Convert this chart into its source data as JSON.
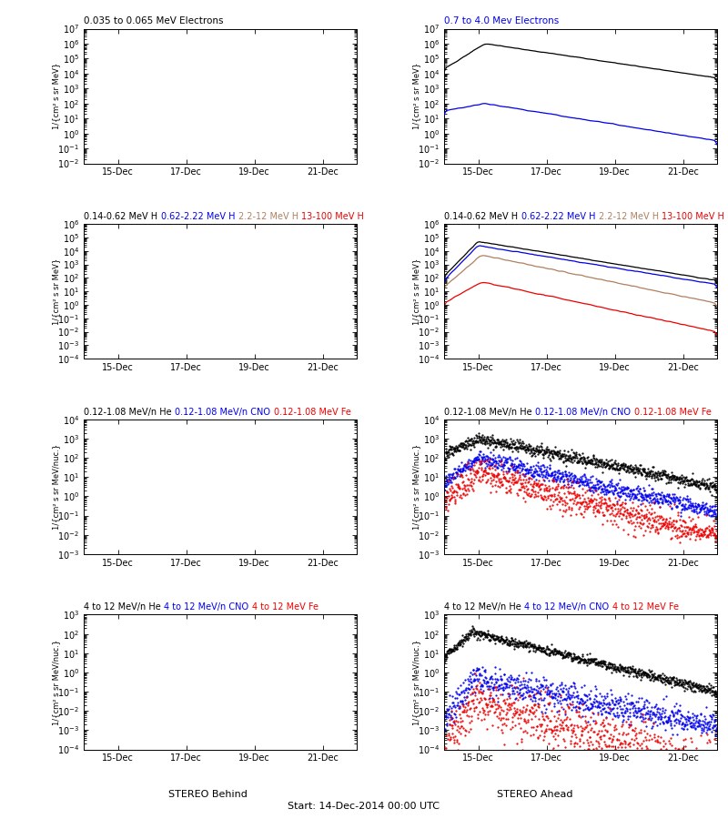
{
  "title_left_row0": "0.035 to 0.065 MeV Electrons",
  "title_right_row0": "0.7 to 4.0 Mev Electrons",
  "title_row1_parts": [
    "0.14-0.62 MeV H",
    "0.62-2.22 MeV H",
    "2.2-12 MeV H",
    "13-100 MeV H"
  ],
  "title_row1_colors": [
    "black",
    "blue",
    "brown",
    "red"
  ],
  "title_row2_parts": [
    "0.12-1.08 MeV/n He",
    "0.12-1.08 MeV/n CNO",
    "0.12-1.08 MeV Fe"
  ],
  "title_row2_colors": [
    "black",
    "blue",
    "red"
  ],
  "title_row3_parts": [
    "4 to 12 MeV/n He",
    "4 to 12 MeV/n CNO",
    "4 to 12 MeV Fe"
  ],
  "title_row3_colors": [
    "black",
    "blue",
    "red"
  ],
  "xlabel_center": "Start: 14-Dec-2014 00:00 UTC",
  "xlabel_left": "STEREO Behind",
  "xlabel_right": "STEREO Ahead",
  "xtick_labels": [
    "15-Dec",
    "17-Dec",
    "19-Dec",
    "21-Dec"
  ],
  "bg_color": "#ffffff",
  "colors": {
    "black": "#000000",
    "blue": "#0000ee",
    "red": "#ee0000",
    "brown": "#b08060"
  },
  "ylabel_mev": "1/{cm² s sr MeV}",
  "ylabel_nuc": "1/{cm² s sr MeV/nuc.}",
  "row0_ylim": [
    -2,
    7
  ],
  "row1_ylim": [
    -4,
    6
  ],
  "row2_ylim": [
    -3,
    4
  ],
  "row3_ylim": [
    -4,
    3
  ],
  "xlim": [
    0,
    8
  ],
  "xticks": [
    1,
    3,
    5,
    7
  ]
}
